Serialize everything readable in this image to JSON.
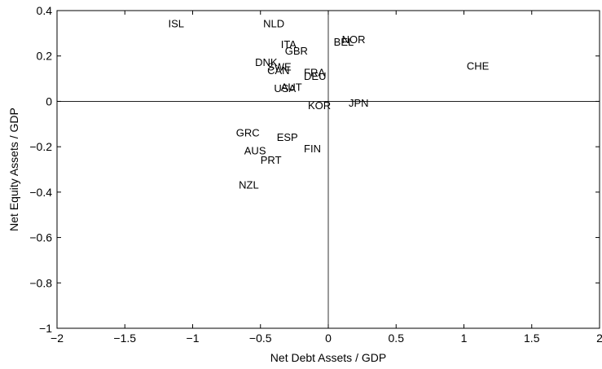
{
  "chart_data": {
    "type": "scatter",
    "title": "",
    "xlabel": "Net Debt Assets / GDP",
    "ylabel": "Net Equity Assets / GDP",
    "xlim": [
      -2,
      2
    ],
    "ylim": [
      -1,
      0.4
    ],
    "xticks": [
      -2,
      -1.5,
      -1,
      -0.5,
      0,
      0.5,
      1,
      1.5,
      2
    ],
    "xtick_labels": [
      "−2",
      "−1.5",
      "−1",
      "−0.5",
      "0",
      "0.5",
      "1",
      "1.5",
      "2"
    ],
    "yticks": [
      -1,
      -0.8,
      -0.6,
      -0.4,
      -0.2,
      0,
      0.2,
      0.4
    ],
    "ytick_labels": [
      "−1",
      "−0.8",
      "−0.6",
      "−0.4",
      "−0.2",
      "0",
      "0.2",
      "0.4"
    ],
    "grid": false,
    "reference_lines": {
      "x": 0,
      "y": 0
    },
    "points": [
      {
        "label": "ISL",
        "x": -1.18,
        "y": 0.34
      },
      {
        "label": "NLD",
        "x": -0.48,
        "y": 0.34
      },
      {
        "label": "ITA",
        "x": -0.35,
        "y": 0.25
      },
      {
        "label": "BEL",
        "x": 0.04,
        "y": 0.26
      },
      {
        "label": "NOR",
        "x": 0.1,
        "y": 0.27
      },
      {
        "label": "GBR",
        "x": -0.32,
        "y": 0.22
      },
      {
        "label": "DNK",
        "x": -0.54,
        "y": 0.17
      },
      {
        "label": "SWE",
        "x": -0.45,
        "y": 0.15
      },
      {
        "label": "CAN",
        "x": -0.45,
        "y": 0.135
      },
      {
        "label": "FRA",
        "x": -0.18,
        "y": 0.125
      },
      {
        "label": "DEU",
        "x": -0.18,
        "y": 0.11
      },
      {
        "label": "CHE",
        "x": 1.02,
        "y": 0.155
      },
      {
        "label": "AUT",
        "x": -0.35,
        "y": 0.06
      },
      {
        "label": "USA",
        "x": -0.4,
        "y": 0.055
      },
      {
        "label": "KOR",
        "x": -0.15,
        "y": -0.02
      },
      {
        "label": "JPN",
        "x": 0.15,
        "y": -0.01
      },
      {
        "label": "GRC",
        "x": -0.68,
        "y": -0.14
      },
      {
        "label": "ESP",
        "x": -0.38,
        "y": -0.16
      },
      {
        "label": "FIN",
        "x": -0.18,
        "y": -0.21
      },
      {
        "label": "AUS",
        "x": -0.62,
        "y": -0.22
      },
      {
        "label": "PRT",
        "x": -0.5,
        "y": -0.26
      },
      {
        "label": "NZL",
        "x": -0.66,
        "y": -0.37
      }
    ]
  }
}
